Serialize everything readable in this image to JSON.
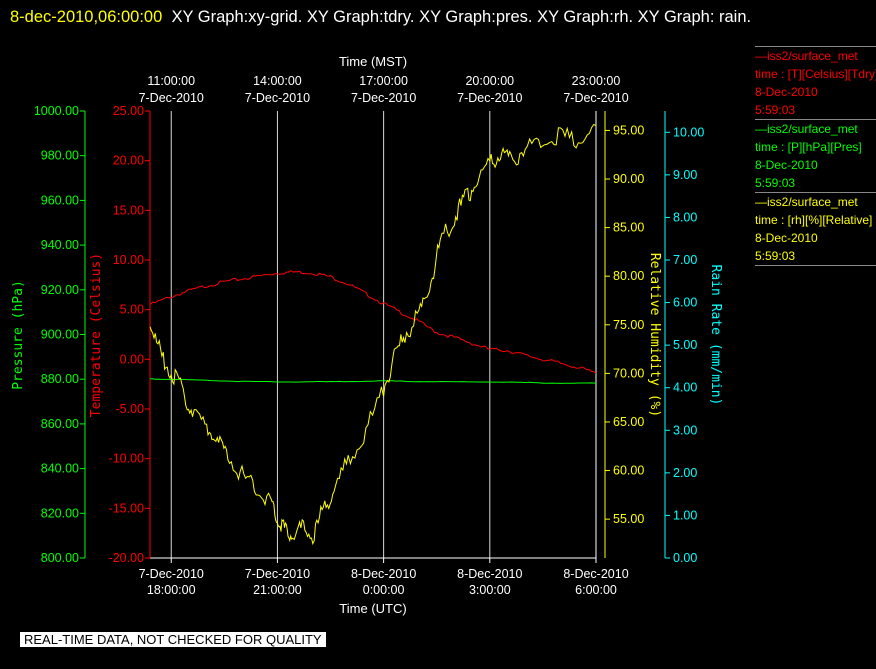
{
  "header": {
    "timestamp": "8-dec-2010,06:00:00",
    "graph_list": "XY Graph:xy-grid.  XY Graph:tdry.  XY Graph:pres.  XY Graph:rh.  XY Graph: rain."
  },
  "disclaimer": "REAL-TIME DATA, NOT CHECKED FOR QUALITY",
  "legend": [
    {
      "line": "—iss2/surface_met",
      "units": "time : [T][Celsius][Tdry]",
      "date": "8-Dec-2010",
      "time": "5:59:03",
      "color": "#ff0000"
    },
    {
      "line": "—iss2/surface_met",
      "units": "time : [P][hPa][Pres]",
      "date": "8-Dec-2010",
      "time": "5:59:03",
      "color": "#00ff00"
    },
    {
      "line": "—iss2/surface_met",
      "units": "time : [rh][%][Relative]",
      "date": "8-Dec-2010",
      "time": "5:59:03",
      "color": "#ffff00"
    }
  ],
  "chart_data": {
    "type": "line",
    "x_label_top": "Time (MST)",
    "x_label_bottom": "Time (UTC)",
    "x_range_hours_utc": [
      17.4,
      30.0
    ],
    "top_ticks": [
      {
        "x": 18,
        "time": "11:00:00",
        "date": "7-Dec-2010"
      },
      {
        "x": 21,
        "time": "14:00:00",
        "date": "7-Dec-2010"
      },
      {
        "x": 24,
        "time": "17:00:00",
        "date": "7-Dec-2010"
      },
      {
        "x": 27,
        "time": "20:00:00",
        "date": "7-Dec-2010"
      },
      {
        "x": 30,
        "time": "23:00:00",
        "date": "7-Dec-2010"
      }
    ],
    "bottom_ticks": [
      {
        "x": 18,
        "date": "7-Dec-2010",
        "time": "18:00:00"
      },
      {
        "x": 21,
        "date": "7-Dec-2010",
        "time": "21:00:00"
      },
      {
        "x": 24,
        "date": "8-Dec-2010",
        "time": "0:00:00"
      },
      {
        "x": 27,
        "date": "8-Dec-2010",
        "time": "3:00:00"
      },
      {
        "x": 30,
        "date": "8-Dec-2010",
        "time": "6:00:00"
      }
    ],
    "grid": true,
    "axes": [
      {
        "id": "pres",
        "label": "Pressure (hPa)",
        "color": "#00ff00",
        "range": [
          800,
          1000
        ],
        "ticks": [
          "800.00",
          "820.00",
          "840.00",
          "860.00",
          "880.00",
          "900.00",
          "920.00",
          "940.00",
          "960.00",
          "980.00",
          "1000.00"
        ]
      },
      {
        "id": "temp",
        "label": "Temperature (Celsius)",
        "color": "#ff0000",
        "range": [
          -20,
          25
        ],
        "ticks": [
          "-20.00",
          "-15.00",
          "-10.00",
          "-5.00",
          "0.00",
          "5.00",
          "10.00",
          "15.00",
          "20.00",
          "25.00"
        ]
      },
      {
        "id": "rh",
        "label": "Relative Humidity (%)",
        "color": "#ffff00",
        "range": [
          51,
          97
        ],
        "ticks": [
          "55.00",
          "60.00",
          "65.00",
          "70.00",
          "75.00",
          "80.00",
          "85.00",
          "90.00",
          "95.00"
        ]
      },
      {
        "id": "rain",
        "label": "Rain Rate (mm/min)",
        "color": "#00ffff",
        "range": [
          0,
          10.5
        ],
        "ticks": [
          "0.00",
          "1.00",
          "2.00",
          "3.00",
          "4.00",
          "5.00",
          "6.00",
          "7.00",
          "8.00",
          "9.00",
          "10.00"
        ]
      }
    ],
    "series": [
      {
        "axis": "temp",
        "color": "#ff0000",
        "x": [
          17.4,
          18.0,
          18.5,
          19.0,
          19.5,
          20.0,
          20.5,
          21.0,
          21.5,
          22.0,
          22.5,
          23.0,
          23.5,
          24.0,
          24.5,
          25.0,
          25.5,
          26.0,
          26.5,
          27.0,
          27.5,
          28.0,
          28.5,
          29.0,
          29.5,
          30.0
        ],
        "y": [
          5.5,
          6.3,
          6.9,
          7.4,
          7.8,
          8.1,
          8.4,
          8.7,
          8.8,
          8.7,
          8.3,
          7.6,
          6.6,
          5.6,
          4.7,
          3.8,
          2.7,
          2.2,
          1.6,
          1.0,
          0.9,
          0.4,
          0.0,
          -0.4,
          -0.8,
          -1.4
        ]
      },
      {
        "axis": "pres",
        "color": "#00ff00",
        "x": [
          17.4,
          18.0,
          19.0,
          20.0,
          21.0,
          22.0,
          23.0,
          24.0,
          25.0,
          26.0,
          27.0,
          28.0,
          29.0,
          30.0
        ],
        "y": [
          880.1,
          880.0,
          879.5,
          879.0,
          878.8,
          878.8,
          879.0,
          879.2,
          879.0,
          878.8,
          878.8,
          878.5,
          878.2,
          878.2
        ]
      },
      {
        "axis": "rh",
        "color": "#ffff00",
        "x": [
          17.4,
          17.7,
          18.0,
          18.3,
          18.6,
          19.0,
          19.3,
          19.6,
          20.0,
          20.4,
          20.8,
          21.0,
          21.2,
          21.4,
          21.7,
          22.0,
          22.3,
          22.6,
          23.0,
          23.5,
          24.0,
          24.3,
          24.6,
          25.0,
          25.3,
          25.6,
          26.0,
          26.3,
          26.6,
          27.0,
          27.3,
          27.6,
          28.0,
          28.5,
          29.0,
          29.5,
          30.0
        ],
        "y": [
          75.0,
          72.0,
          70.0,
          68.5,
          66.0,
          64.5,
          63.0,
          61.5,
          59.5,
          58.0,
          57.0,
          55.0,
          54.0,
          53.5,
          54.0,
          53.2,
          56.0,
          58.0,
          61.0,
          64.0,
          68.5,
          71.5,
          74.0,
          76.0,
          79.0,
          83.5,
          86.0,
          88.0,
          89.5,
          91.5,
          92.5,
          92.0,
          93.0,
          94.0,
          94.5,
          94.0,
          95.5
        ]
      }
    ]
  }
}
